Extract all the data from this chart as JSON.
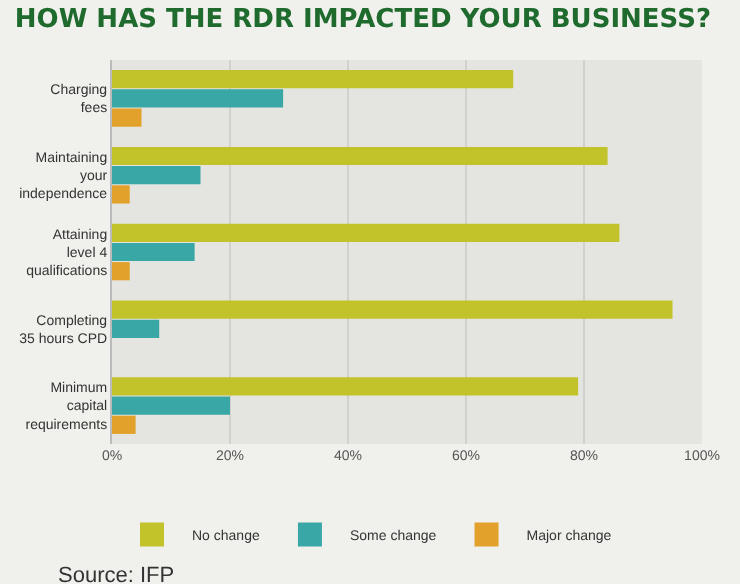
{
  "chart_data": {
    "type": "bar",
    "orientation": "horizontal",
    "title": "HOW HAS THE RDR IMPACTED YOUR BUSINESS?",
    "categories": [
      "Charging\nfees",
      "Maintaining\nyour\nindependence",
      "Attaining\nlevel 4\nqualifications",
      "Completing\n35 hours CPD",
      "Minimum\ncapital\nrequirements"
    ],
    "series": [
      {
        "name": "No change",
        "color": "#c2c22a",
        "values": [
          68,
          84,
          86,
          95,
          79
        ]
      },
      {
        "name": "Some change",
        "color": "#3aa7a7",
        "values": [
          29,
          15,
          14,
          8,
          20
        ]
      },
      {
        "name": "Major change",
        "color": "#e2a12a",
        "values": [
          5,
          3,
          3,
          0,
          4
        ]
      }
    ],
    "xlim": [
      0,
      100
    ],
    "xticks": [
      {
        "value": 0,
        "label": "0%"
      },
      {
        "value": 20,
        "label": "20%"
      },
      {
        "value": 40,
        "label": "40%"
      },
      {
        "value": 60,
        "label": "60%"
      },
      {
        "value": 80,
        "label": "80%"
      },
      {
        "value": 100,
        "label": "100%"
      }
    ],
    "grid": "x",
    "legend": "bottom",
    "annotations": [
      "Source: IFP"
    ]
  }
}
